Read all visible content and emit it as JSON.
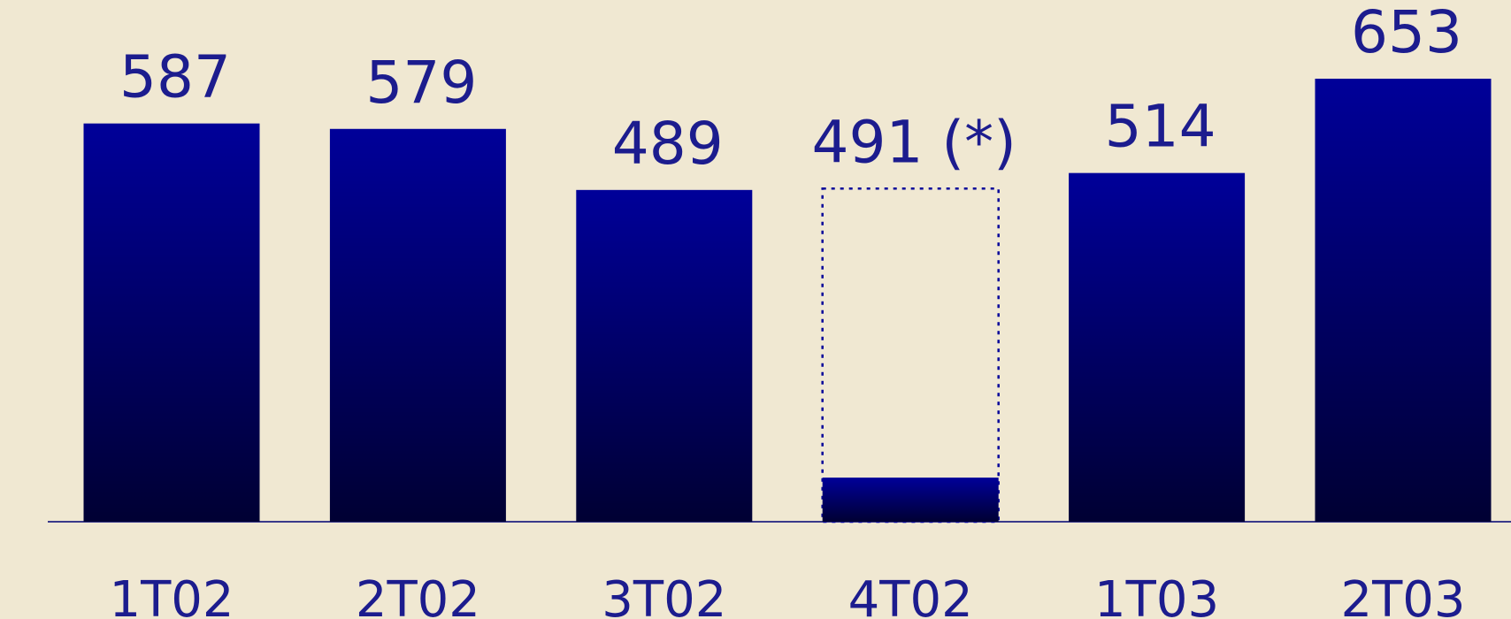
{
  "chart_data": {
    "type": "bar",
    "categories": [
      "1T02",
      "2T02",
      "3T02",
      "4T02",
      "1T03",
      "2T03"
    ],
    "values": [
      587,
      579,
      489,
      491,
      514,
      653
    ],
    "value_labels": [
      "587",
      "579",
      "489",
      "491 (*)",
      "514",
      "653"
    ],
    "solid_values": [
      null,
      null,
      null,
      65,
      null,
      null
    ],
    "color_top": "#000099",
    "color_bottom": "#000033",
    "ylim": [
      0,
      769
    ]
  }
}
